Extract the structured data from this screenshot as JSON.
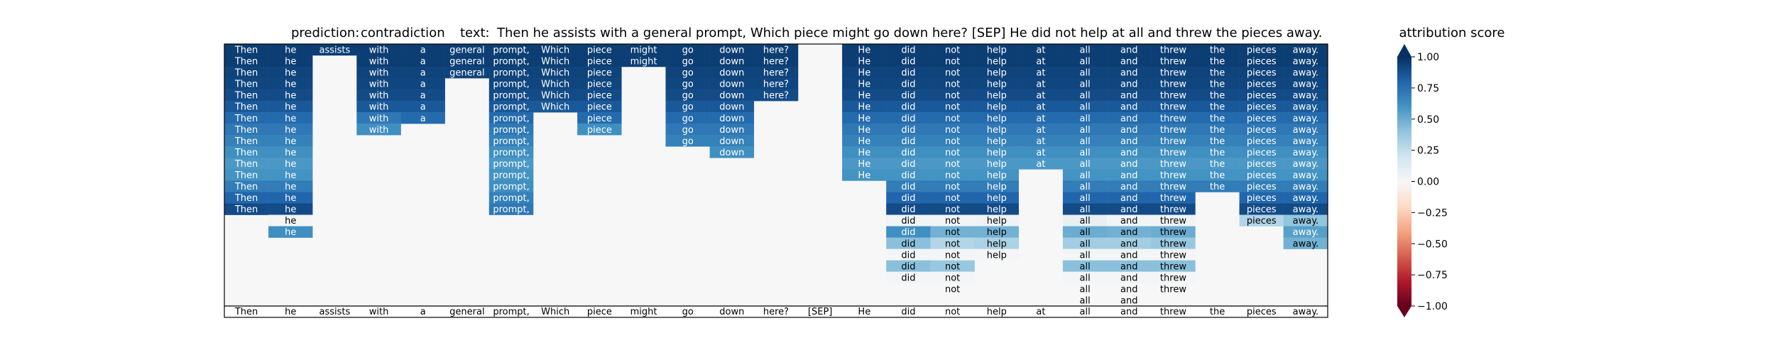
{
  "chart_data": {
    "type": "heatmap",
    "title": {
      "prediction_label": "prediction:",
      "prediction_value": "contradiction",
      "text_label": "text:",
      "text_value": "Then he assists with a general prompt, Which piece might go down here? [SEP] He did not help at all and threw the pieces away."
    },
    "tokens": [
      "Then",
      "he",
      "assists",
      "with",
      "a",
      "general",
      "prompt,",
      "Which",
      "piece",
      "might",
      "go",
      "down",
      "here?",
      "[SEP]",
      "He",
      "did",
      "not",
      "help",
      "at",
      "all",
      "and",
      "threw",
      "the",
      "pieces",
      "away."
    ],
    "n_rows": 23,
    "columns": [
      [
        0.95,
        0.95,
        0.93,
        0.92,
        0.9,
        0.85,
        0.78,
        0.72,
        0.68,
        0.62,
        0.58,
        0.6,
        0.7,
        0.8,
        0.9
      ],
      [
        0.95,
        0.95,
        0.93,
        0.92,
        0.9,
        0.85,
        0.78,
        0.72,
        0.68,
        0.62,
        0.58,
        0.6,
        0.7,
        0.8,
        0.9,
        0.02,
        0.62
      ],
      [
        0.95
      ],
      [
        0.95,
        0.95,
        0.93,
        0.92,
        0.9,
        0.85,
        0.72,
        0.62
      ],
      [
        0.95,
        0.95,
        0.93,
        0.92,
        0.9,
        0.85,
        0.78
      ],
      [
        0.95,
        0.95,
        0.93
      ],
      [
        0.95,
        0.95,
        0.93,
        0.92,
        0.9,
        0.85,
        0.78,
        0.72,
        0.68,
        0.62,
        0.58,
        0.6,
        0.62,
        0.68,
        0.72
      ],
      [
        0.95,
        0.95,
        0.93,
        0.92,
        0.9,
        0.85
      ],
      [
        0.95,
        0.95,
        0.93,
        0.92,
        0.9,
        0.85,
        0.78,
        0.62
      ],
      [
        0.95,
        0.95
      ],
      [
        0.95,
        0.95,
        0.93,
        0.92,
        0.9,
        0.85,
        0.78,
        0.72,
        0.68
      ],
      [
        0.95,
        0.95,
        0.93,
        0.92,
        0.9,
        0.85,
        0.78,
        0.72,
        0.68,
        0.62
      ],
      [
        0.95,
        0.95,
        0.93,
        0.92,
        0.9
      ],
      [],
      [
        0.95,
        0.95,
        0.93,
        0.92,
        0.9,
        0.85,
        0.78,
        0.72,
        0.68,
        0.62,
        0.58,
        0.6
      ],
      [
        0.95,
        0.95,
        0.93,
        0.92,
        0.9,
        0.85,
        0.78,
        0.72,
        0.68,
        0.62,
        0.58,
        0.6,
        0.7,
        0.8,
        0.9,
        0.03,
        0.62,
        0.42,
        0.02,
        0.42,
        0.02
      ],
      [
        0.95,
        0.95,
        0.93,
        0.92,
        0.9,
        0.85,
        0.78,
        0.72,
        0.68,
        0.62,
        0.58,
        0.6,
        0.7,
        0.8,
        0.9,
        0.03,
        0.48,
        0.3,
        0.02,
        0.38,
        0.02,
        0.0
      ],
      [
        0.95,
        0.95,
        0.93,
        0.92,
        0.9,
        0.85,
        0.78,
        0.72,
        0.68,
        0.62,
        0.58,
        0.6,
        0.7,
        0.8,
        0.9,
        0.04,
        0.48,
        0.32,
        0.02
      ],
      [
        0.95,
        0.95,
        0.93,
        0.92,
        0.9,
        0.85,
        0.78,
        0.72,
        0.68,
        0.62,
        0.58
      ],
      [
        0.95,
        0.95,
        0.93,
        0.92,
        0.9,
        0.85,
        0.78,
        0.72,
        0.68,
        0.62,
        0.58,
        0.6,
        0.7,
        0.8,
        0.9,
        0.08,
        0.5,
        0.35,
        0.02,
        0.42,
        0.02,
        0.0,
        0.0
      ],
      [
        0.95,
        0.95,
        0.93,
        0.92,
        0.9,
        0.85,
        0.78,
        0.72,
        0.68,
        0.62,
        0.58,
        0.6,
        0.7,
        0.8,
        0.9,
        0.03,
        0.48,
        0.35,
        0.02,
        0.42,
        0.02,
        0.0,
        0.0
      ],
      [
        0.95,
        0.95,
        0.93,
        0.92,
        0.9,
        0.85,
        0.78,
        0.72,
        0.68,
        0.62,
        0.58,
        0.6,
        0.7,
        0.8,
        0.9,
        0.03,
        0.5,
        0.38,
        0.02,
        0.42,
        0.02,
        0.0
      ],
      [
        0.95,
        0.95,
        0.93,
        0.92,
        0.9,
        0.85,
        0.78,
        0.72,
        0.68,
        0.62,
        0.58,
        0.6,
        0.7
      ],
      [
        0.95,
        0.95,
        0.93,
        0.92,
        0.9,
        0.85,
        0.78,
        0.72,
        0.68,
        0.62,
        0.58,
        0.6,
        0.7,
        0.8,
        0.9,
        0.3
      ],
      [
        0.95,
        0.95,
        0.93,
        0.92,
        0.9,
        0.85,
        0.78,
        0.72,
        0.68,
        0.62,
        0.58,
        0.6,
        0.7,
        0.8,
        0.9,
        0.4,
        0.55,
        0.48
      ]
    ],
    "colorbar": {
      "label": "attribution score",
      "range": [
        -1.0,
        1.0
      ],
      "ticks": [
        1.0,
        0.75,
        0.5,
        0.25,
        0.0,
        -0.25,
        -0.5,
        -0.75,
        -1.0
      ],
      "tick_labels": [
        "1.00",
        "0.75",
        "0.50",
        "0.25",
        "0.00",
        "−0.25",
        "−0.50",
        "−0.75",
        "−1.00"
      ],
      "colormap": "RdBu",
      "extend": "both"
    },
    "grid": false,
    "colors": {
      "background_cell": "#f7f7f7",
      "dark_text": "#ffffff",
      "light_text": "#000000",
      "frame": "#000000"
    }
  }
}
